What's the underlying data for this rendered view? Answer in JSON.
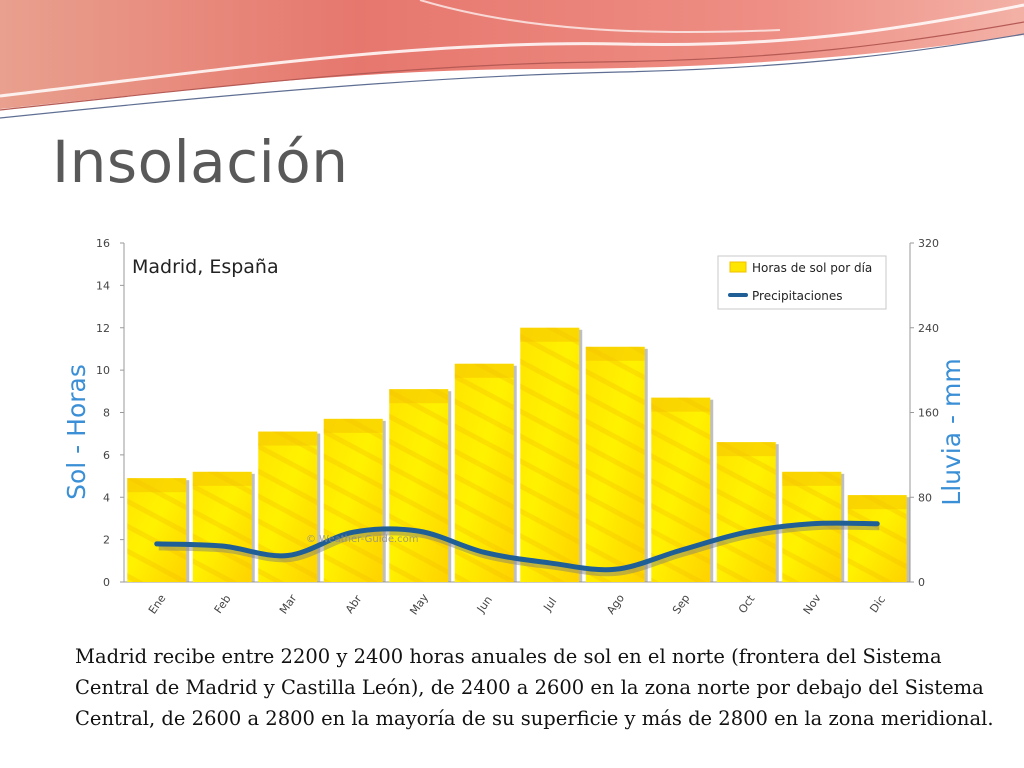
{
  "slide": {
    "title": "Insolación",
    "caption": "Madrid recibe entre 2200 y 2400 horas anuales de sol en el norte (frontera del Sistema Central de Madrid y Castilla León), de 2400 a 2600 en la zona norte por debajo del Sistema Central, de 2600 a 2800 en la mayoría de su superficie y más de 2800 en la zona meridional."
  },
  "chart_data": {
    "type": "bar",
    "title": "Madrid, España",
    "categories": [
      "Ene",
      "Feb",
      "Mar",
      "Abr",
      "May",
      "Jun",
      "Jul",
      "Ago",
      "Sep",
      "Oct",
      "Nov",
      "Dic"
    ],
    "series": [
      {
        "name": "Horas de sol por día",
        "type": "bar",
        "axis": "left",
        "values": [
          4.9,
          5.2,
          7.1,
          7.7,
          9.1,
          10.3,
          12.0,
          11.1,
          8.7,
          6.6,
          5.2,
          4.1
        ]
      },
      {
        "name": "Precipitaciones",
        "type": "line",
        "axis": "right",
        "values": [
          36,
          34,
          25,
          47,
          48,
          28,
          18,
          12,
          30,
          47,
          55,
          55
        ]
      }
    ],
    "ylabel_left": "Sol - Horas",
    "ylabel_right": "Lluvia - mm",
    "ylim_left": [
      0,
      16
    ],
    "ylim_right": [
      0,
      320
    ],
    "yticks_left": [
      0,
      2,
      4,
      6,
      8,
      10,
      12,
      14,
      16
    ],
    "yticks_right": [
      0,
      80,
      160,
      240,
      320
    ],
    "watermark": "© Weather-Guide.com",
    "legend": "top-right",
    "grid": false,
    "colors": {
      "bar": "#ffe600",
      "bar_dark": "#f5c400",
      "line": "#1f5f96",
      "axis_label": "#3a8fd6"
    }
  }
}
